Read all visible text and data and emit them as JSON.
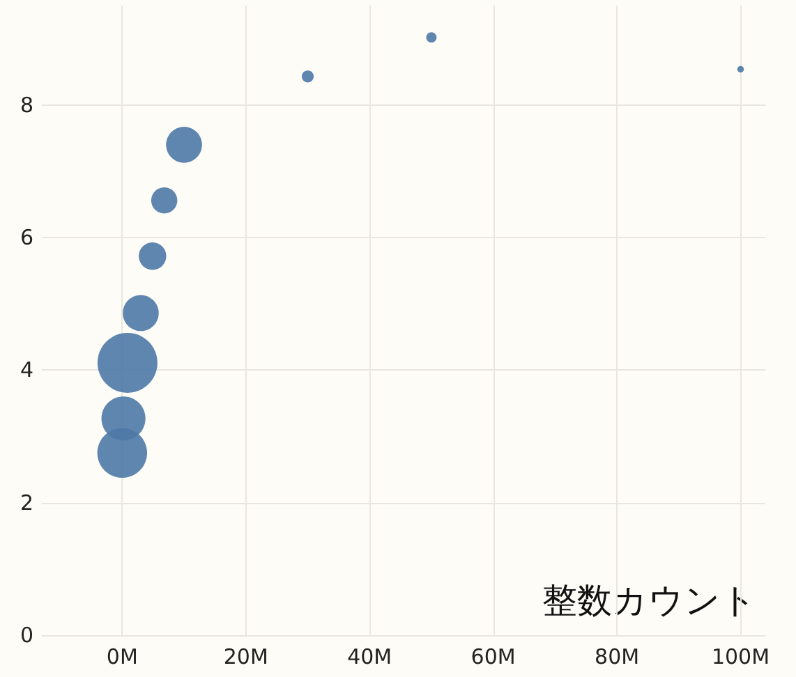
{
  "chart_data": {
    "type": "bubble",
    "annotations": [
      "整数カウント"
    ],
    "x": [
      0,
      200000,
      850000,
      3000000,
      4900000,
      6800000,
      10000000,
      30000000,
      50000000,
      100000000
    ],
    "values": [
      2.75,
      3.27,
      4.11,
      4.86,
      5.72,
      6.56,
      7.4,
      8.43,
      9.02,
      8.54
    ],
    "sizes": [
      0.69,
      0.54,
      1,
      0.36,
      0.21,
      0.19,
      0.36,
      0.04,
      0.03,
      0.012
    ],
    "color": "#4e79a7",
    "xlim": [
      -13000000,
      104000000
    ],
    "ylim": [
      0,
      9.5
    ],
    "xticks": [
      {
        "value": 0,
        "label": "0M"
      },
      {
        "value": 20000000,
        "label": "20M"
      },
      {
        "value": 40000000,
        "label": "40M"
      },
      {
        "value": 60000000,
        "label": "60M"
      },
      {
        "value": 80000000,
        "label": "80M"
      },
      {
        "value": 100000000,
        "label": "100M"
      }
    ],
    "yticks": [
      0,
      2,
      4,
      6,
      8
    ],
    "grid": true,
    "marker": "circle"
  }
}
